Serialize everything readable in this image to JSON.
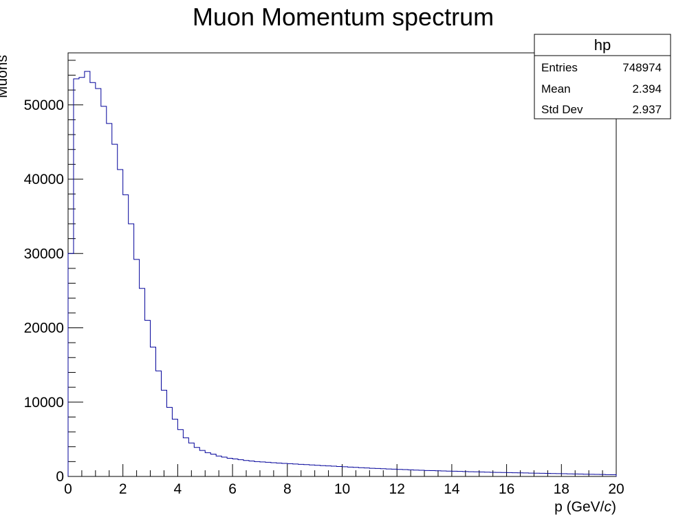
{
  "chart_data": {
    "type": "bar",
    "title": "Muon Momentum spectrum",
    "xlabel": "p (GeV/c)",
    "xlabel_parts": {
      "prefix": "p (GeV/",
      "italic": "c",
      "suffix": ")"
    },
    "ylabel": "Muons",
    "xlim": [
      0,
      20
    ],
    "ylim": [
      0,
      57000
    ],
    "x_ticks": [
      "0",
      "2",
      "4",
      "6",
      "8",
      "10",
      "12",
      "14",
      "16",
      "18",
      "20"
    ],
    "y_ticks": [
      "0",
      "10000",
      "20000",
      "30000",
      "40000",
      "50000"
    ],
    "bin_width": 0.2,
    "bin_edges_start": 0,
    "values": [
      30000,
      53500,
      53700,
      54500,
      53000,
      52200,
      49800,
      47500,
      44700,
      41300,
      37900,
      34000,
      29200,
      25300,
      21000,
      17400,
      14200,
      11600,
      9300,
      7700,
      6300,
      5200,
      4500,
      3900,
      3500,
      3200,
      3000,
      2750,
      2600,
      2450,
      2350,
      2250,
      2150,
      2080,
      2000,
      1950,
      1900,
      1850,
      1800,
      1760,
      1720,
      1680,
      1630,
      1590,
      1550,
      1500,
      1460,
      1420,
      1380,
      1340,
      1300,
      1260,
      1220,
      1180,
      1140,
      1100,
      1070,
      1040,
      1010,
      980,
      950,
      920,
      890,
      860,
      830,
      800,
      780,
      760,
      740,
      720,
      700,
      680,
      660,
      640,
      620,
      600,
      580,
      560,
      545,
      530,
      515,
      500,
      485,
      470,
      455,
      440,
      425,
      410,
      395,
      380,
      365,
      350,
      335,
      320,
      305,
      290,
      275,
      260,
      245,
      230
    ],
    "line_color": "#000099",
    "stats_box": {
      "name": "hp",
      "rows": [
        {
          "label": "Entries",
          "value": "748974"
        },
        {
          "label": "Mean",
          "value": "2.394"
        },
        {
          "label": "Std Dev",
          "value": "2.937"
        }
      ]
    }
  }
}
